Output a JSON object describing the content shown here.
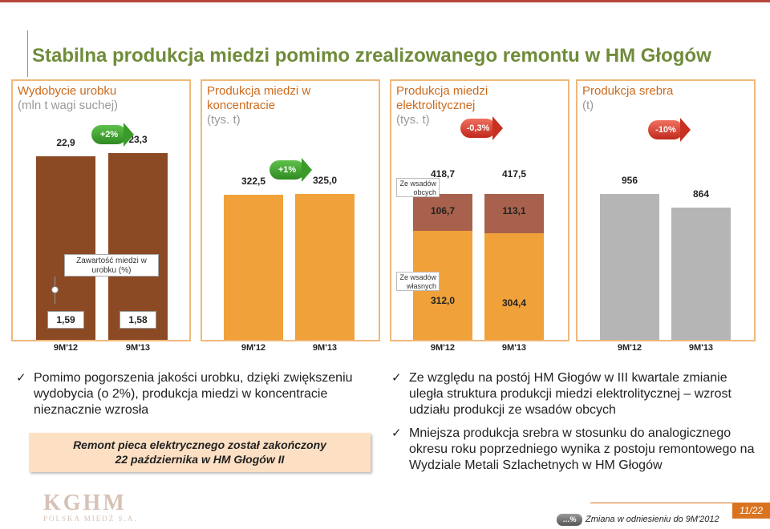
{
  "title": "Stabilna produkcja miedzi pomimo zrealizowanego remontu w HM Głogów",
  "colors": {
    "orange": "#f0a13a",
    "brown": "#8b4a24",
    "grey": "#b5b5b5",
    "redbrown": "#a8614c",
    "title_green": "#6f8c3a"
  },
  "chart_data": [
    {
      "type": "bar",
      "title": "Wydobycie urobku",
      "subtitle": "(mln t wagi suchej)",
      "categories": [
        "9M'12",
        "9M'13"
      ],
      "values": [
        22.9,
        23.3
      ],
      "value_labels": [
        "22,9",
        "23,3"
      ],
      "change": "+2%",
      "line_label": "Zawartość miedzi w urobku (%)",
      "line_values": [
        1.59,
        1.58
      ],
      "line_labels": [
        "1,59",
        "1,58"
      ]
    },
    {
      "type": "bar",
      "title": "Produkcja miedzi w koncentracie",
      "subtitle": "(tys. t)",
      "categories": [
        "9M'12",
        "9M'13"
      ],
      "values": [
        322.5,
        325.0
      ],
      "value_labels": [
        "322,5",
        "325,0"
      ],
      "change": "+1%"
    },
    {
      "type": "bar",
      "stacked": true,
      "title": "Produkcja miedzi elektrolitycznej",
      "subtitle": "(tys. t)",
      "categories": [
        "9M'12",
        "9M'13"
      ],
      "totals": [
        418.7,
        417.5
      ],
      "total_labels": [
        "418,7",
        "417,5"
      ],
      "change": "-0,3%",
      "series": [
        {
          "name": "Ze wsadów własnych",
          "values": [
            312.0,
            304.4
          ],
          "labels": [
            "312,0",
            "304,4"
          ]
        },
        {
          "name": "Ze wsadów obcych",
          "values": [
            106.7,
            113.1
          ],
          "labels": [
            "106,7",
            "113,1"
          ]
        }
      ]
    },
    {
      "type": "bar",
      "title": "Produkcja srebra",
      "subtitle": "(t)",
      "categories": [
        "9M'12",
        "9M'13"
      ],
      "values": [
        956,
        864
      ],
      "value_labels": [
        "956",
        "864"
      ],
      "change": "-10%"
    }
  ],
  "labels": {
    "wsady_wlasne_l1": "Ze wsadów",
    "wsady_wlasne_l2": "własnych",
    "wsady_obce_l1": "Ze wsadów",
    "wsady_obce_l2": "obcych",
    "zawartosc_l1": "Zawartość miedzi w",
    "zawartosc_l2": "urobku (%)"
  },
  "bullets_left": [
    "Pomimo pogorszenia jakości urobku, dzięki zwiększeniu wydobycia (o 2%), produkcja miedzi w koncentracie nieznacznie wzrosła"
  ],
  "bullets_right": [
    "Ze względu na postój HM Głogów w III kwartale zmianie uległa struktura produkcji miedzi elektrolitycznej – wzrost udziału produkcji ze wsadów obcych",
    "Mniejsza produkcja srebra w stosunku do analogicznego okresu roku poprzedniego wynika z postoju remontowego na Wydziale Metali Szlachetnych w HM Głogów"
  ],
  "remont_l1": "Remont pieca elektrycznego został zakończony",
  "remont_l2": "22 października w HM Głogów II",
  "logo_big": "KGHM",
  "logo_small": "POLSKA MIEDŹ S.A.",
  "legend_pill": "…%",
  "legend_text": "Zmiana w odniesieniu do 9M'2012",
  "page": "11/22"
}
